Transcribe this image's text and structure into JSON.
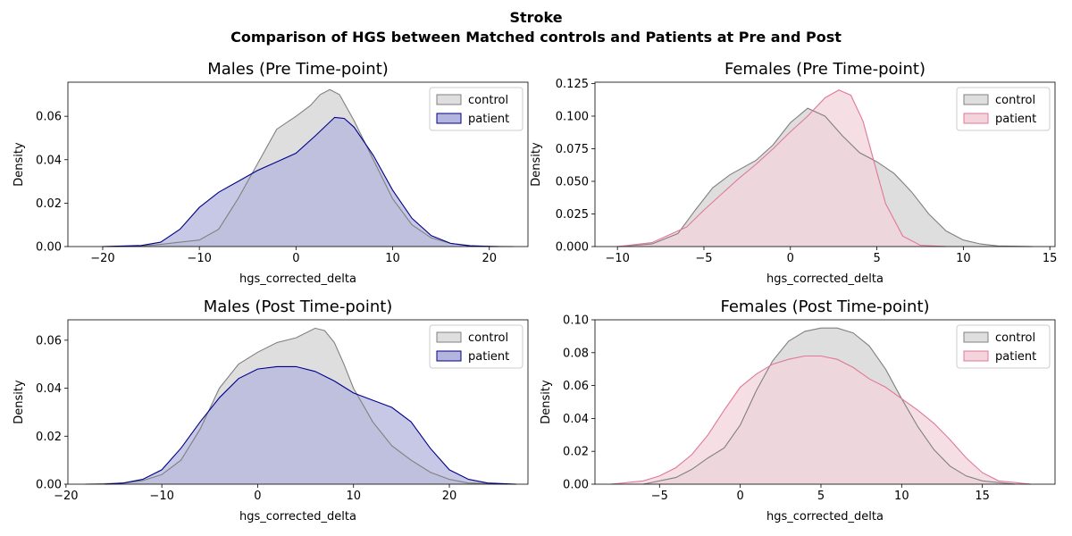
{
  "figure": {
    "title": "Stroke",
    "subtitle": "Comparison of HGS between Matched controls and Patients at Pre and Post"
  },
  "chart_data": [
    {
      "type": "area",
      "title": "Males (Pre Time-point)",
      "xlabel": "hgs_corrected_delta",
      "ylabel": "Density",
      "xlim": [
        -23.6,
        24.0
      ],
      "ylim": [
        0,
        0.0757
      ],
      "xticks": [
        -20,
        -10,
        0,
        10,
        20
      ],
      "yticks": [
        0.0,
        0.02,
        0.04,
        0.06
      ],
      "ytick_labels": [
        "0.00",
        "0.02",
        "0.04",
        "0.06"
      ],
      "xtick_labels": [
        "−20",
        "−10",
        "0",
        "10",
        "20"
      ],
      "legend": "top-right",
      "grid": false,
      "series": [
        {
          "name": "control",
          "color": "#808080",
          "fill": "#dedede",
          "x": [
            -20,
            -16,
            -14,
            -12,
            -10,
            -8,
            -6,
            -4,
            -2,
            0,
            1.5,
            2.5,
            3.5,
            4.5,
            6,
            8,
            10,
            12,
            14,
            16,
            18,
            20,
            22.5
          ],
          "y": [
            0.0,
            0.0003,
            0.001,
            0.002,
            0.003,
            0.008,
            0.022,
            0.038,
            0.054,
            0.06,
            0.065,
            0.07,
            0.0723,
            0.07,
            0.058,
            0.04,
            0.022,
            0.01,
            0.004,
            0.0015,
            0.0005,
            0.0001,
            0.0
          ]
        },
        {
          "name": "patient",
          "color": "#00008b",
          "fill": "#b3b5dc",
          "x": [
            -20,
            -16,
            -14,
            -12,
            -10,
            -8,
            -6,
            -4,
            -2,
            0,
            2,
            4,
            5,
            6,
            8,
            10,
            12,
            14,
            16,
            18,
            21
          ],
          "y": [
            0.0,
            0.0005,
            0.002,
            0.008,
            0.018,
            0.025,
            0.03,
            0.035,
            0.039,
            0.043,
            0.051,
            0.0595,
            0.059,
            0.055,
            0.042,
            0.026,
            0.013,
            0.005,
            0.0015,
            0.0003,
            0.0
          ]
        }
      ]
    },
    {
      "type": "area",
      "title": "Females (Pre Time-point)",
      "xlabel": "hgs_corrected_delta",
      "ylabel": "Density",
      "xlim": [
        -11.3,
        15.3
      ],
      "ylim": [
        0,
        0.126
      ],
      "xticks": [
        -10,
        -5,
        0,
        5,
        10,
        15
      ],
      "yticks": [
        0.0,
        0.025,
        0.05,
        0.075,
        0.1,
        0.125
      ],
      "ytick_labels": [
        "0.000",
        "0.025",
        "0.050",
        "0.075",
        "0.100",
        "0.125"
      ],
      "xtick_labels": [
        "−10",
        "−5",
        "0",
        "5",
        "10",
        "15"
      ],
      "legend": "top-right",
      "grid": false,
      "series": [
        {
          "name": "control",
          "color": "#808080",
          "fill": "#dedede",
          "x": [
            -10,
            -8,
            -6.5,
            -5.5,
            -4.5,
            -3.5,
            -2,
            -1,
            0,
            1,
            2,
            3,
            4,
            5,
            6,
            7,
            8,
            9,
            10,
            11,
            12,
            14
          ],
          "y": [
            0.0,
            0.002,
            0.01,
            0.028,
            0.045,
            0.055,
            0.066,
            0.078,
            0.095,
            0.106,
            0.1,
            0.085,
            0.072,
            0.065,
            0.056,
            0.042,
            0.025,
            0.012,
            0.005,
            0.002,
            0.0005,
            0.0
          ]
        },
        {
          "name": "patient",
          "color": "#e0789a",
          "fill": "#f3d3dc",
          "x": [
            -10,
            -8,
            -6,
            -5,
            -4,
            -3,
            -2,
            -1,
            0,
            1,
            2,
            2.8,
            3.5,
            4.2,
            5,
            5.5,
            6.5,
            7.5,
            9
          ],
          "y": [
            0.0,
            0.003,
            0.015,
            0.028,
            0.04,
            0.052,
            0.063,
            0.075,
            0.088,
            0.1,
            0.114,
            0.12,
            0.116,
            0.096,
            0.057,
            0.033,
            0.008,
            0.001,
            0.0
          ]
        }
      ]
    },
    {
      "type": "area",
      "title": "Males (Post Time-point)",
      "xlabel": "hgs_corrected_delta",
      "ylabel": "Density",
      "xlim": [
        -19.8,
        28.2
      ],
      "ylim": [
        0,
        0.0685
      ],
      "xticks": [
        -20,
        -10,
        0,
        10,
        20
      ],
      "yticks": [
        0.0,
        0.02,
        0.04,
        0.06
      ],
      "ytick_labels": [
        "0.00",
        "0.02",
        "0.04",
        "0.06"
      ],
      "xtick_labels": [
        "−20",
        "−10",
        "0",
        "10",
        "20"
      ],
      "legend": "top-right",
      "grid": false,
      "series": [
        {
          "name": "control",
          "color": "#808080",
          "fill": "#dedede",
          "x": [
            -18,
            -14,
            -12,
            -10,
            -8,
            -6,
            -4,
            -2,
            0,
            2,
            4,
            6,
            7,
            8,
            9,
            10,
            11,
            12,
            14,
            16,
            18,
            20,
            22,
            26
          ],
          "y": [
            0.0,
            0.0005,
            0.0015,
            0.004,
            0.01,
            0.023,
            0.04,
            0.05,
            0.055,
            0.059,
            0.061,
            0.065,
            0.064,
            0.059,
            0.05,
            0.04,
            0.033,
            0.026,
            0.016,
            0.01,
            0.005,
            0.002,
            0.0005,
            0.0
          ]
        },
        {
          "name": "patient",
          "color": "#00008b",
          "fill": "#b3b5dc",
          "x": [
            -16,
            -14,
            -12,
            -10,
            -8,
            -6,
            -4,
            -2,
            0,
            2,
            4,
            6,
            8,
            10,
            12,
            14,
            16,
            18,
            20,
            22,
            24,
            27
          ],
          "y": [
            0.0,
            0.0005,
            0.002,
            0.006,
            0.015,
            0.026,
            0.036,
            0.044,
            0.048,
            0.049,
            0.049,
            0.047,
            0.043,
            0.038,
            0.035,
            0.032,
            0.026,
            0.015,
            0.006,
            0.002,
            0.0005,
            0.0
          ]
        }
      ]
    },
    {
      "type": "area",
      "title": "Females (Post Time-point)",
      "xlabel": "hgs_corrected_delta",
      "ylabel": "Density",
      "xlim": [
        -9.0,
        19.5
      ],
      "ylim": [
        0,
        0.1
      ],
      "xticks": [
        -5,
        0,
        5,
        10,
        15
      ],
      "yticks": [
        0.0,
        0.02,
        0.04,
        0.06,
        0.08,
        0.1
      ],
      "ytick_labels": [
        "0.00",
        "0.02",
        "0.04",
        "0.06",
        "0.08",
        "0.10"
      ],
      "xtick_labels": [
        "−5",
        "0",
        "5",
        "10",
        "15"
      ],
      "legend": "top-right",
      "grid": false,
      "series": [
        {
          "name": "control",
          "color": "#808080",
          "fill": "#dedede",
          "x": [
            -6,
            -4,
            -3,
            -2,
            -1,
            0,
            1,
            2,
            3,
            4,
            5,
            6,
            7,
            8,
            9,
            10,
            11,
            12,
            13,
            14,
            15,
            17
          ],
          "y": [
            0.0,
            0.004,
            0.009,
            0.016,
            0.022,
            0.036,
            0.057,
            0.075,
            0.087,
            0.093,
            0.095,
            0.095,
            0.092,
            0.084,
            0.07,
            0.052,
            0.035,
            0.021,
            0.011,
            0.005,
            0.002,
            0.0
          ]
        },
        {
          "name": "patient",
          "color": "#e0789a",
          "fill": "#f3d3dc",
          "x": [
            -8,
            -6,
            -5,
            -4,
            -3,
            -2,
            -1,
            0,
            1,
            2,
            3,
            4,
            5,
            6,
            7,
            8,
            9,
            10,
            11,
            12,
            13,
            14,
            15,
            16,
            18
          ],
          "y": [
            0.0,
            0.002,
            0.005,
            0.01,
            0.018,
            0.03,
            0.045,
            0.059,
            0.067,
            0.073,
            0.076,
            0.078,
            0.078,
            0.076,
            0.071,
            0.064,
            0.059,
            0.052,
            0.045,
            0.037,
            0.027,
            0.016,
            0.007,
            0.002,
            0.0
          ]
        }
      ]
    }
  ]
}
